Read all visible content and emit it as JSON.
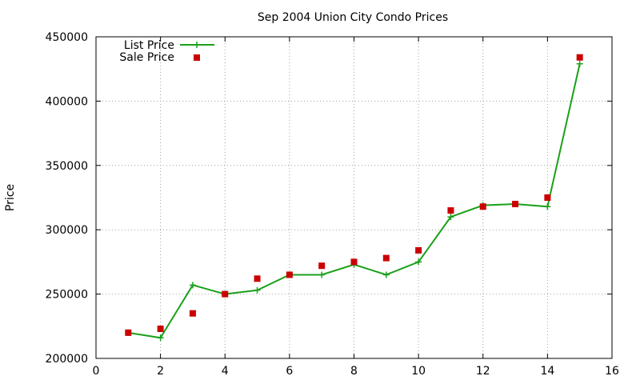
{
  "chart_data": {
    "type": "line",
    "title": "Sep 2004 Union City Condo Prices",
    "xlabel": "",
    "ylabel": "Price",
    "xlim": [
      0,
      16
    ],
    "ylim": [
      200000,
      450000
    ],
    "x_ticks": [
      0,
      2,
      4,
      6,
      8,
      10,
      12,
      14,
      16
    ],
    "y_ticks": [
      200000,
      250000,
      300000,
      350000,
      400000,
      450000
    ],
    "grid": true,
    "legend_position": "top-left",
    "series": [
      {
        "name": "List Price",
        "style": "line-with-plus-markers",
        "color": "#1aa01a",
        "x": [
          1,
          2,
          3,
          4,
          5,
          6,
          7,
          8,
          9,
          10,
          11,
          12,
          13,
          14,
          15
        ],
        "y": [
          220000,
          216000,
          257000,
          250000,
          253000,
          265000,
          265000,
          273000,
          265000,
          275000,
          310000,
          319000,
          320000,
          318000,
          429000
        ]
      },
      {
        "name": "Sale Price",
        "style": "square-markers",
        "color": "#cc0000",
        "x": [
          1,
          2,
          3,
          4,
          5,
          6,
          7,
          8,
          9,
          10,
          11,
          12,
          13,
          14,
          15
        ],
        "y": [
          220000,
          223000,
          235000,
          250000,
          262000,
          265000,
          272000,
          275000,
          278000,
          284000,
          315000,
          318000,
          320000,
          325000,
          434000
        ]
      }
    ]
  }
}
